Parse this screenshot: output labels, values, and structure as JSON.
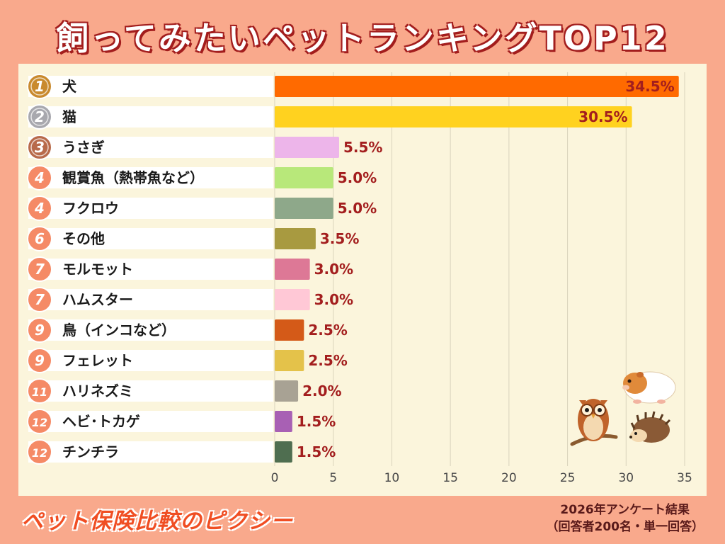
{
  "title": "飼ってみたいペットランキングTOP12",
  "footer": {
    "brand": "ペット保険比較のピクシー",
    "note_line1": "2026年アンケート結果",
    "note_line2": "（回答者200名・単一回答）"
  },
  "chart_data": {
    "type": "bar",
    "orientation": "horizontal",
    "title": "飼ってみたいペットランキングTOP12",
    "xlabel": "",
    "ylabel": "",
    "xlim": [
      0,
      35
    ],
    "xticks": [
      "0",
      "5",
      "10",
      "15",
      "20",
      "25",
      "30",
      "35"
    ],
    "grid": true,
    "ranks": [
      "1",
      "2",
      "3",
      "4",
      "4",
      "6",
      "7",
      "7",
      "9",
      "9",
      "11",
      "12",
      "12"
    ],
    "categories": [
      "犬",
      "猫",
      "うさぎ",
      "観賞魚（熱帯魚など）",
      "フクロウ",
      "その他",
      "モルモット",
      "ハムスター",
      "鳥（インコなど）",
      "フェレット",
      "ハリネズミ",
      "ヘビ･トカゲ",
      "チンチラ"
    ],
    "values": [
      34.5,
      30.5,
      5.5,
      5.0,
      5.0,
      3.5,
      3.0,
      3.0,
      2.5,
      2.5,
      2.0,
      1.5,
      1.5
    ],
    "value_labels": [
      "34.5%",
      "30.5%",
      "5.5%",
      "5.0%",
      "5.0%",
      "3.5%",
      "3.0%",
      "3.0%",
      "2.5%",
      "2.5%",
      "2.0%",
      "1.5%",
      "1.5%"
    ],
    "colors": [
      "#FF6A00",
      "#FFD21F",
      "#EDB5EA",
      "#B8E87A",
      "#8EA88A",
      "#A89A40",
      "#DD7896",
      "#FFC8D6",
      "#D45A18",
      "#E4C24A",
      "#A8A294",
      "#A860B4",
      "#4F6E50"
    ],
    "medal_colors": [
      "#C98A2E",
      "#A8A8AE",
      "#B86A4A"
    ],
    "badge_color": "#F58A66"
  }
}
